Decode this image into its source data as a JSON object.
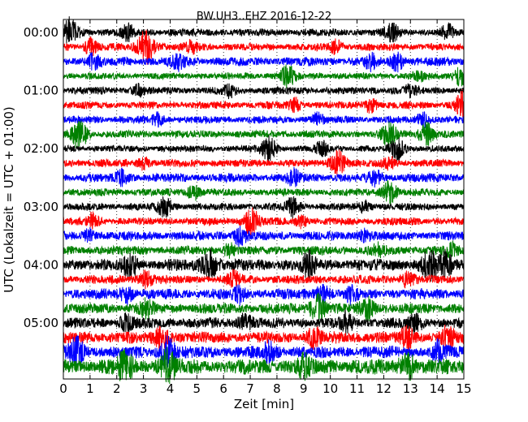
{
  "chart_data": {
    "type": "line",
    "title": "BW.UH3..EHZ 2016-12-22",
    "xlabel": "Zeit  [min]",
    "ylabel": "UTC (Lokalzeit = UTC + 01:00)",
    "xlim": [
      0,
      15
    ],
    "x_ticks": [
      "0",
      "1",
      "2",
      "3",
      "4",
      "5",
      "6",
      "7",
      "8",
      "9",
      "10",
      "11",
      "12",
      "13",
      "14",
      "15"
    ],
    "y_tick_labels": [
      "00:00",
      "01:00",
      "02:00",
      "03:00",
      "04:00",
      "05:00"
    ],
    "grid": "x-dotted",
    "trace_colors": [
      "#000000",
      "#ff0000",
      "#0000ff",
      "#008000"
    ],
    "rows": [
      {
        "start": "00:00",
        "amplitude": 0.25,
        "events": [
          [
            0.25,
            1.0
          ],
          [
            2.4,
            0.5
          ],
          [
            12.3,
            0.6
          ],
          [
            14.4,
            0.5
          ]
        ]
      },
      {
        "start": "00:15",
        "amplitude": 0.25,
        "events": [
          [
            1.0,
            0.6
          ],
          [
            3.1,
            1.2
          ],
          [
            4.8,
            0.4
          ],
          [
            10.2,
            0.5
          ]
        ]
      },
      {
        "start": "00:30",
        "amplitude": 0.3,
        "events": [
          [
            1.1,
            0.5
          ],
          [
            4.3,
            0.5
          ],
          [
            11.5,
            0.5
          ],
          [
            12.5,
            0.6
          ]
        ]
      },
      {
        "start": "00:45",
        "amplitude": 0.22,
        "events": [
          [
            8.4,
            0.8
          ],
          [
            13.3,
            0.4
          ],
          [
            14.9,
            0.7
          ]
        ]
      },
      {
        "start": "01:00",
        "amplitude": 0.25,
        "events": [
          [
            2.8,
            0.4
          ],
          [
            6.2,
            0.4
          ],
          [
            13.0,
            0.4
          ]
        ]
      },
      {
        "start": "01:15",
        "amplitude": 0.25,
        "events": [
          [
            8.7,
            0.4
          ],
          [
            11.5,
            0.5
          ],
          [
            15.0,
            1.0
          ]
        ]
      },
      {
        "start": "01:30",
        "amplitude": 0.25,
        "events": [
          [
            3.5,
            0.4
          ],
          [
            9.5,
            0.4
          ],
          [
            13.5,
            0.5
          ]
        ]
      },
      {
        "start": "01:45",
        "amplitude": 0.25,
        "events": [
          [
            0.6,
            1.0
          ],
          [
            12.2,
            0.8
          ],
          [
            13.6,
            0.8
          ]
        ]
      },
      {
        "start": "02:00",
        "amplitude": 0.22,
        "events": [
          [
            7.7,
            0.9
          ],
          [
            9.7,
            0.5
          ],
          [
            12.5,
            0.8
          ]
        ]
      },
      {
        "start": "02:15",
        "amplitude": 0.25,
        "events": [
          [
            3.0,
            0.4
          ],
          [
            10.3,
            0.9
          ],
          [
            12.2,
            0.4
          ]
        ]
      },
      {
        "start": "02:30",
        "amplitude": 0.3,
        "events": [
          [
            2.2,
            0.5
          ],
          [
            8.6,
            0.5
          ],
          [
            11.7,
            0.5
          ]
        ]
      },
      {
        "start": "02:45",
        "amplitude": 0.25,
        "events": [
          [
            4.9,
            0.5
          ],
          [
            12.2,
            0.8
          ]
        ]
      },
      {
        "start": "03:00",
        "amplitude": 0.25,
        "events": [
          [
            3.8,
            0.7
          ],
          [
            8.6,
            0.7
          ],
          [
            11.3,
            0.4
          ]
        ]
      },
      {
        "start": "03:15",
        "amplitude": 0.25,
        "events": [
          [
            1.1,
            0.5
          ],
          [
            7.0,
            1.0
          ],
          [
            8.9,
            0.4
          ]
        ]
      },
      {
        "start": "03:30",
        "amplitude": 0.3,
        "events": [
          [
            1.0,
            0.4
          ],
          [
            6.6,
            0.6
          ],
          [
            11.3,
            0.4
          ]
        ]
      },
      {
        "start": "03:45",
        "amplitude": 0.3,
        "events": [
          [
            6.2,
            0.4
          ],
          [
            11.8,
            0.4
          ],
          [
            14.5,
            0.5
          ]
        ]
      },
      {
        "start": "04:00",
        "amplitude": 0.4,
        "events": [
          [
            2.5,
            0.8
          ],
          [
            5.5,
            1.0
          ],
          [
            9.2,
            0.7
          ],
          [
            13.7,
            0.9
          ],
          [
            14.3,
            0.8
          ]
        ]
      },
      {
        "start": "04:15",
        "amplitude": 0.3,
        "events": [
          [
            3.1,
            0.6
          ],
          [
            6.4,
            0.5
          ],
          [
            12.9,
            0.5
          ]
        ]
      },
      {
        "start": "04:30",
        "amplitude": 0.35,
        "events": [
          [
            2.4,
            0.6
          ],
          [
            6.6,
            0.5
          ],
          [
            9.7,
            0.6
          ],
          [
            10.8,
            0.5
          ]
        ]
      },
      {
        "start": "04:45",
        "amplitude": 0.35,
        "events": [
          [
            3.1,
            0.6
          ],
          [
            9.5,
            1.0
          ],
          [
            11.4,
            0.7
          ]
        ]
      },
      {
        "start": "05:00",
        "amplitude": 0.35,
        "events": [
          [
            2.4,
            0.5
          ],
          [
            6.8,
            0.6
          ],
          [
            10.6,
            0.6
          ],
          [
            13.2,
            0.6
          ]
        ]
      },
      {
        "start": "05:15",
        "amplitude": 0.4,
        "events": [
          [
            3.7,
            0.7
          ],
          [
            9.4,
            0.6
          ],
          [
            12.9,
            0.6
          ],
          [
            14.4,
            0.7
          ]
        ]
      },
      {
        "start": "05:30",
        "amplitude": 0.4,
        "events": [
          [
            0.5,
            0.9
          ],
          [
            3.9,
            1.0
          ],
          [
            7.7,
            0.6
          ],
          [
            14.1,
            0.7
          ]
        ]
      },
      {
        "start": "05:45",
        "amplitude": 0.5,
        "events": [
          [
            2.3,
            0.9
          ],
          [
            3.9,
            1.0
          ],
          [
            9.0,
            0.6
          ],
          [
            12.9,
            0.9
          ]
        ]
      }
    ]
  }
}
